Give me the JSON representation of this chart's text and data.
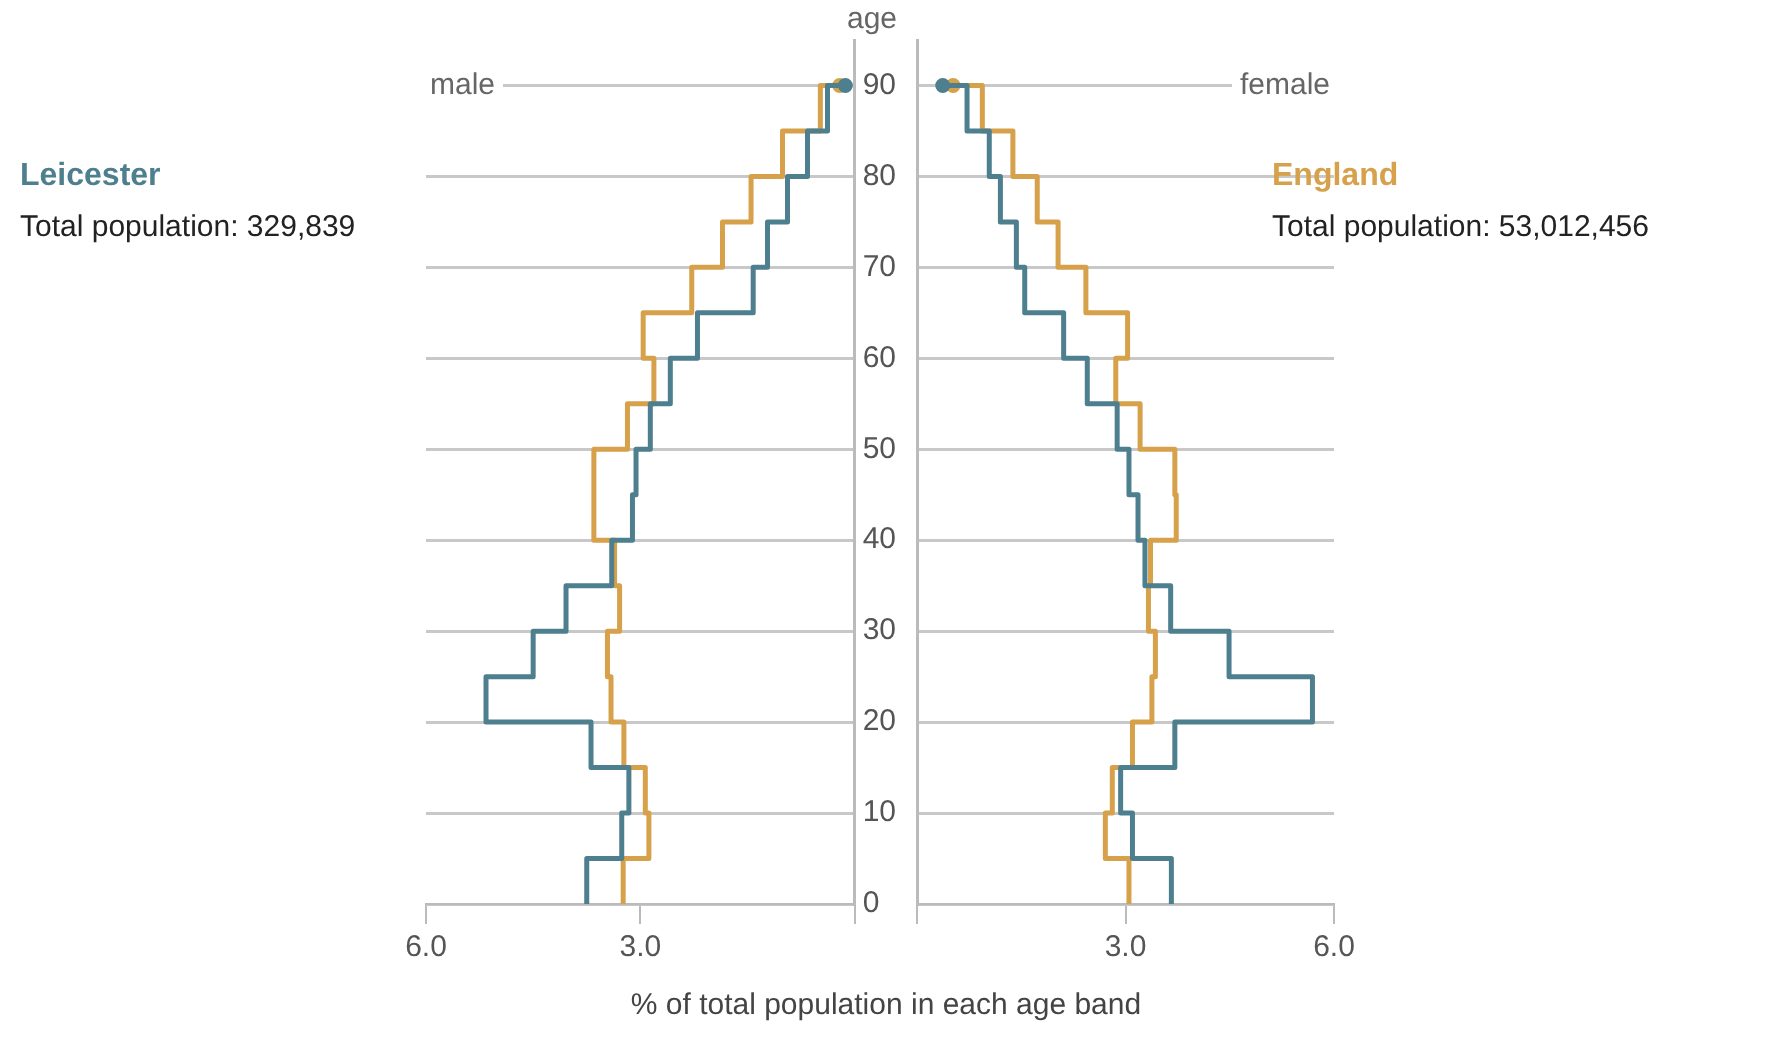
{
  "chart_data": [
    {
      "type": "step",
      "orientation": "horizontal",
      "title": "male",
      "ylabel": "age",
      "xlabel": "% of total population in each age band",
      "legend": "left",
      "grid": "y",
      "annotations": [
        "Total population: 329,839"
      ],
      "x": [
        0,
        5,
        10,
        15,
        20,
        25,
        30,
        35,
        40,
        45,
        50,
        55,
        60,
        65,
        70,
        75,
        80,
        85,
        90
      ],
      "xlim": [
        6,
        0
      ],
      "xticks": [
        {
          "value": 6,
          "label": "6.0"
        },
        {
          "value": 3,
          "label": "3.0"
        },
        {
          "value": 0,
          "label": null
        }
      ],
      "ylim": [
        0,
        95
      ],
      "yticks": [
        0,
        10,
        20,
        30,
        40,
        50,
        60,
        70,
        80,
        90
      ],
      "series": [
        {
          "name": "Leicester",
          "color": "#4e7f8e",
          "values": [
            3.75,
            3.26,
            3.16,
            3.69,
            5.16,
            4.5,
            4.04,
            3.4,
            3.11,
            3.06,
            2.86,
            2.58,
            2.2,
            1.42,
            1.22,
            0.94,
            0.66,
            0.38,
            0.13
          ]
        },
        {
          "color": "#d6a14a",
          "values": [
            3.24,
            2.88,
            2.93,
            3.23,
            3.41,
            3.46,
            3.29,
            3.36,
            3.65,
            3.65,
            3.18,
            2.81,
            2.96,
            2.28,
            1.85,
            1.45,
            1.01,
            0.48,
            0.21
          ]
        }
      ]
    },
    {
      "type": "step",
      "orientation": "horizontal",
      "title": "female",
      "legend": "right",
      "grid": "y",
      "tick_labels": "x",
      "annotations": [
        "Total population: 53,012,456"
      ],
      "x": [
        0,
        5,
        10,
        15,
        20,
        25,
        30,
        35,
        40,
        45,
        50,
        55,
        60,
        65,
        70,
        75,
        80,
        85,
        90
      ],
      "xlim": [
        0,
        6
      ],
      "xticks": [
        {
          "value": 0,
          "label": null
        },
        {
          "value": 3,
          "label": "3.0"
        },
        {
          "value": 6,
          "label": "6.0"
        }
      ],
      "ylim": [
        0,
        95
      ],
      "yticks": [
        0,
        10,
        20,
        30,
        40,
        50,
        60,
        70,
        80,
        90
      ],
      "series": [
        {
          "color": "#4e7f8e",
          "values": [
            3.66,
            3.1,
            2.93,
            3.71,
            5.69,
            4.49,
            3.65,
            3.28,
            3.18,
            3.05,
            2.88,
            2.45,
            2.11,
            1.55,
            1.43,
            1.2,
            1.04,
            0.72,
            0.37
          ]
        },
        {
          "name": "England",
          "color": "#d6a14a",
          "values": [
            3.05,
            2.71,
            2.81,
            3.1,
            3.38,
            3.43,
            3.33,
            3.36,
            3.73,
            3.71,
            3.21,
            2.86,
            3.03,
            2.43,
            2.03,
            1.73,
            1.38,
            0.94,
            0.52
          ]
        }
      ]
    }
  ]
}
